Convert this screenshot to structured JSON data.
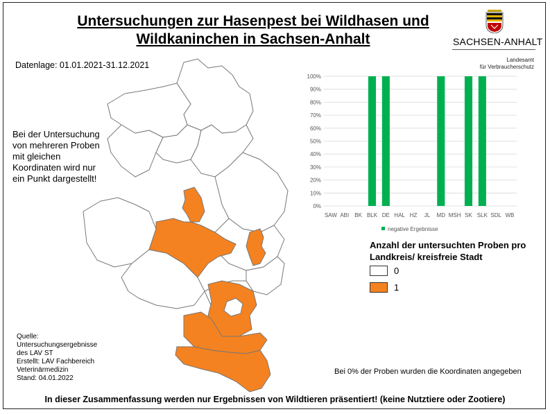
{
  "title_line1": "Untersuchungen zur Hasenpest bei Wildhasen und",
  "title_line2": "Wildkaninchen in Sachsen-Anhalt",
  "date_range": "Datenlage: 01.01.2021-31.12.2021",
  "logo": {
    "state": "SACHSEN-ANHALT",
    "agency_line1": "Landesamt",
    "agency_line2": "für Verbraucherschutz"
  },
  "note": [
    "Bei der Untersuchung",
    "von mehreren Proben",
    "mit gleichen",
    "Koordinaten wird nur",
    "ein Punkt dargestellt!"
  ],
  "source": [
    "Quelle:",
    "Untersuchungsergebnisse",
    "des LAV ST",
    "Erstellt: LAV Fachbereich",
    "Veterinärmedizin",
    "Stand: 04.01.2022"
  ],
  "coords_note": "Bei 0% der Proben wurden die Koordinaten angegeben",
  "footer": "In dieser Zusammenfassung werden nur Ergebnissen von Wildtieren präsentiert! (keine Nutztiere oder Zootiere)",
  "map_legend": {
    "title_line1": "Anzahl der untersuchten Proben pro",
    "title_line2": "Landkreis/ kreisfreie Stadt",
    "items": [
      {
        "label": "0",
        "color": "#ffffff"
      },
      {
        "label": "1",
        "color": "#f58220"
      }
    ]
  },
  "colors": {
    "bar": "#00b050",
    "highlight": "#f58220",
    "county_outline": "#777777"
  },
  "chart_data": {
    "type": "bar",
    "categories": [
      "SAW",
      "ABI",
      "BK",
      "BLK",
      "DE",
      "HAL",
      "HZ",
      "JL",
      "MD",
      "MSH",
      "SK",
      "SLK",
      "SDL",
      "WB"
    ],
    "series": [
      {
        "name": "negative Ergebnisse",
        "values": [
          0,
          0,
          0,
          100,
          100,
          0,
          0,
          0,
          100,
          0,
          100,
          100,
          0,
          0
        ]
      }
    ],
    "yticks": [
      "0%",
      "10%",
      "20%",
      "30%",
      "40%",
      "50%",
      "60%",
      "70%",
      "80%",
      "90%",
      "100%"
    ],
    "ylim": [
      0,
      100
    ],
    "grid": true,
    "legend": "bottom"
  }
}
